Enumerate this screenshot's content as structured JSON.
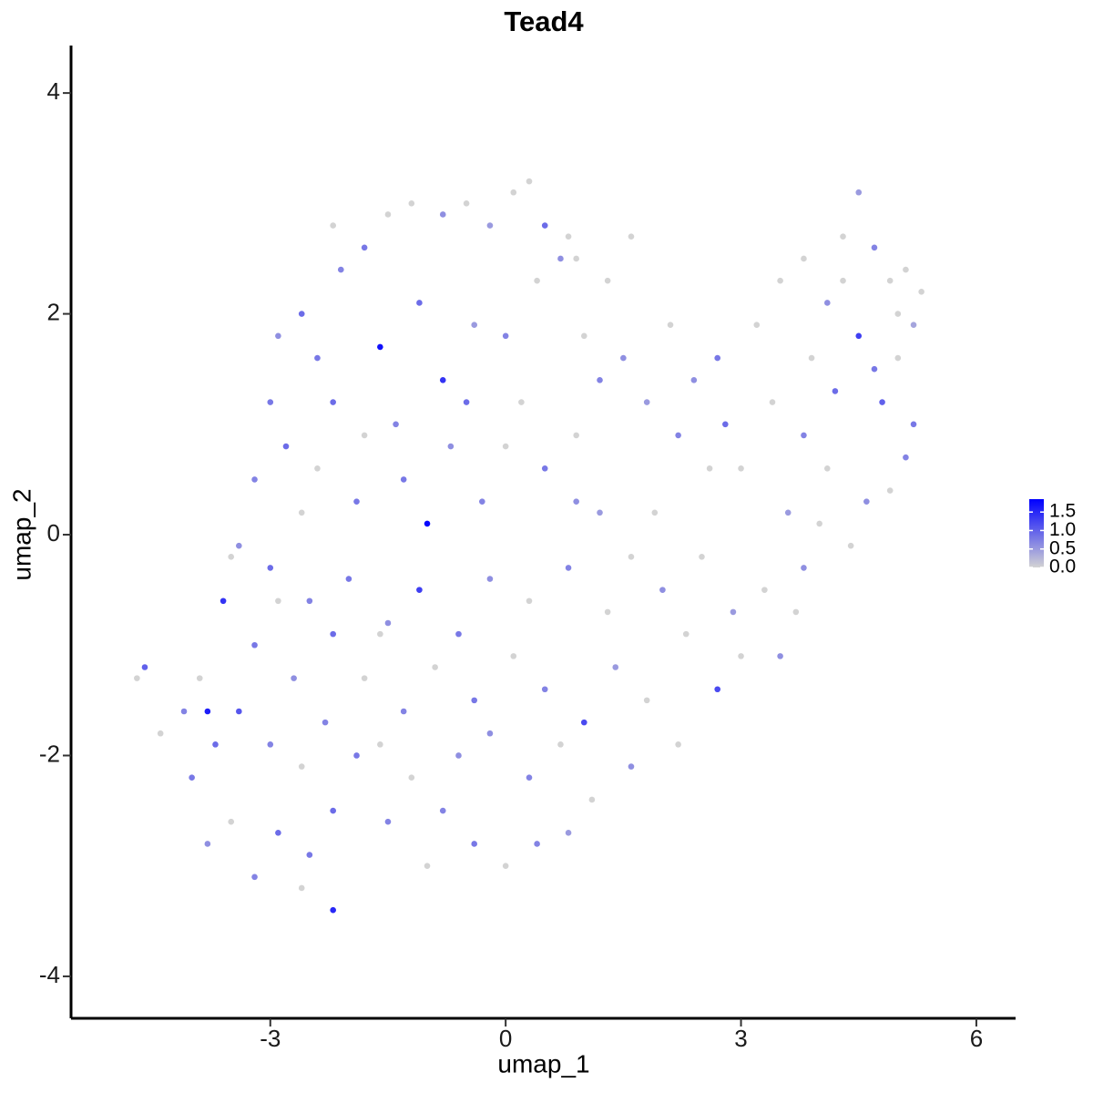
{
  "chart_data": {
    "type": "scatter",
    "title": "Tead4",
    "x_label": "umap_1",
    "y_label": "umap_2",
    "xlim": [
      -5.54,
      6.5
    ],
    "ylim": [
      -4.38,
      4.43
    ],
    "xticks": [
      -3,
      0,
      3,
      6
    ],
    "yticks": [
      -4,
      -2,
      0,
      2,
      4
    ],
    "x": [
      -2.2,
      -1.8,
      -1.5,
      -1.2,
      -0.8,
      -0.5,
      -0.2,
      0.1,
      0.3,
      0.5,
      0.8,
      0.7,
      -2.1,
      -2.6,
      -2.9,
      -2.4,
      -1.6,
      -0.8,
      -1.1,
      -0.4,
      0.0,
      0.4,
      -3.0,
      -2.2,
      -1.4,
      -0.7,
      0.2,
      -2.8,
      -3.2,
      -2.4,
      -1.9,
      -1.0,
      -0.3,
      0.5,
      0.9,
      1.2,
      1.5,
      1.0,
      1.3,
      1.6,
      0.9,
      1.8,
      2.1,
      2.4,
      2.7,
      2.2,
      2.6,
      2.8,
      3.2,
      3.5,
      3.8,
      4.1,
      4.3,
      4.5,
      4.7,
      4.9,
      5.1,
      5.3,
      5.2,
      5.0,
      4.5,
      4.2,
      4.8,
      5.2,
      5.1,
      4.9,
      4.6,
      4.1,
      3.8,
      3.4,
      3.0,
      3.6,
      4.0,
      4.4,
      3.8,
      3.3,
      3.7,
      3.5,
      3.0,
      2.7,
      2.3,
      2.0,
      1.6,
      1.2,
      0.8,
      0.3,
      -0.2,
      -0.6,
      -1.1,
      -1.5,
      -2.0,
      -2.5,
      -3.0,
      -3.5,
      -3.6,
      -3.2,
      -2.7,
      -2.2,
      -1.8,
      -1.3,
      -0.9,
      -0.4,
      0.1,
      0.5,
      1.0,
      1.4,
      1.8,
      2.2,
      1.6,
      1.1,
      0.8,
      0.4,
      0.0,
      -0.4,
      -0.8,
      -1.2,
      -1.0,
      -1.5,
      -1.9,
      -2.2,
      -2.5,
      -2.2,
      -2.6,
      -2.9,
      -3.2,
      -3.5,
      -3.8,
      -4.0,
      -3.7,
      -4.1,
      -3.9,
      -3.4,
      -3.0,
      -2.6,
      -4.6,
      -4.7,
      -4.4,
      -3.8,
      -1.6,
      -0.6,
      0.3,
      0.7,
      -0.2,
      1.3,
      2.5,
      0.0,
      -0.5,
      -1.8,
      -1.3,
      -2.6,
      -3.4,
      -2.9,
      -2.3,
      -1.6,
      0.9,
      1.9,
      2.9,
      3.9,
      4.3,
      5.0,
      4.7
    ],
    "values": [
      2.8,
      2.6,
      2.9,
      3.0,
      2.9,
      3.0,
      2.8,
      3.1,
      3.2,
      2.8,
      2.7,
      2.5,
      2.4,
      2.0,
      1.8,
      1.6,
      1.7,
      1.4,
      2.1,
      1.9,
      1.8,
      2.3,
      1.2,
      1.2,
      1.0,
      0.8,
      1.2,
      0.8,
      0.5,
      0.6,
      0.3,
      0.1,
      0.3,
      0.6,
      0.9,
      1.4,
      1.6,
      1.8,
      2.3,
      2.7,
      2.5,
      1.2,
      1.9,
      1.4,
      1.6,
      0.9,
      0.6,
      1.0,
      1.9,
      2.3,
      2.5,
      2.1,
      2.7,
      3.1,
      2.6,
      2.3,
      2.4,
      2.2,
      1.9,
      1.6,
      1.8,
      1.3,
      1.2,
      1.0,
      0.7,
      0.4,
      0.3,
      0.6,
      0.9,
      1.2,
      0.6,
      0.2,
      0.1,
      -0.1,
      -0.3,
      -0.5,
      -0.7,
      -1.1,
      -1.1,
      -1.4,
      -0.9,
      -0.5,
      -0.2,
      0.2,
      -0.3,
      -0.6,
      -0.4,
      -0.9,
      -0.5,
      -0.8,
      -0.4,
      -0.6,
      -0.3,
      -0.2,
      -0.6,
      -1.0,
      -1.3,
      -0.9,
      -1.3,
      -1.6,
      -1.2,
      -1.5,
      -1.1,
      -1.4,
      -1.7,
      -1.2,
      -1.5,
      -1.9,
      -2.1,
      -2.4,
      -2.7,
      -2.8,
      -3.0,
      -2.8,
      -2.5,
      -2.2,
      -3.0,
      -2.6,
      -2.0,
      -2.5,
      -2.9,
      -3.4,
      -3.2,
      -2.7,
      -3.1,
      -2.6,
      -2.8,
      -2.2,
      -1.9,
      -1.6,
      -1.3,
      -1.6,
      -1.9,
      -2.1,
      -1.2,
      -1.3,
      -1.8,
      -1.6,
      -0.9,
      -2.0,
      -2.2,
      -1.9,
      -1.8,
      -0.7,
      -0.2,
      0.8,
      1.2,
      0.9,
      0.5,
      0.2,
      -0.1,
      -0.6,
      -1.7,
      -1.9,
      0.3,
      0.2,
      -0.7,
      1.6,
      2.3,
      2.0,
      1.5
    ],
    "expression": [
      0,
      0.8,
      0,
      0,
      0.6,
      0,
      0.5,
      0,
      0,
      0.9,
      0,
      0.6,
      0.7,
      0.9,
      0.6,
      0.8,
      1.7,
      1.4,
      0.9,
      0.5,
      0.7,
      0,
      0.8,
      0.9,
      0.7,
      0.6,
      0,
      0.9,
      0.7,
      0,
      0.8,
      1.8,
      0.7,
      0.8,
      0,
      0.7,
      0.6,
      0,
      0,
      0,
      0,
      0.5,
      0,
      0.6,
      0.8,
      0.7,
      0,
      0.9,
      0,
      0,
      0,
      0.6,
      0,
      0.5,
      0.7,
      0,
      0,
      0,
      0.4,
      0,
      1.3,
      0.9,
      1.0,
      0.8,
      0.7,
      0,
      0.6,
      0,
      0.7,
      0,
      0,
      0.5,
      0,
      0,
      0.6,
      0,
      0,
      0.6,
      0,
      1.2,
      0,
      0.6,
      0,
      0.5,
      0.7,
      0,
      0.6,
      0.8,
      1.3,
      0.6,
      0.8,
      0.7,
      0.9,
      0,
      1.4,
      0.8,
      0.6,
      0.9,
      0,
      0.7,
      0,
      0.8,
      0,
      0.7,
      1.2,
      0.5,
      0,
      0,
      0.6,
      0,
      0.5,
      0.7,
      0,
      0.8,
      0.7,
      0,
      0,
      0.7,
      0.8,
      0.9,
      0.8,
      1.5,
      0,
      0.9,
      0.7,
      0,
      0.6,
      0.8,
      0.9,
      0.7,
      0,
      1.1,
      0.7,
      0,
      1.0,
      0,
      0,
      1.6,
      0,
      0.6,
      0.7,
      0,
      0.6,
      0,
      0,
      0,
      0.9,
      0,
      0.8,
      0,
      0.6,
      0,
      0.7,
      0,
      0.6,
      0,
      0.5,
      0,
      0,
      0,
      0.8
    ],
    "colorbar": {
      "lim": [
        0,
        1.85
      ],
      "low_color": "#d3d3d3",
      "high_color": "#0000ff",
      "ticks": [
        {
          "value": 0,
          "label": "0.0"
        },
        {
          "value": 0.5,
          "label": "0.5"
        },
        {
          "value": 1,
          "label": "1.0"
        },
        {
          "value": 1.5,
          "label": "1.5"
        }
      ]
    }
  }
}
